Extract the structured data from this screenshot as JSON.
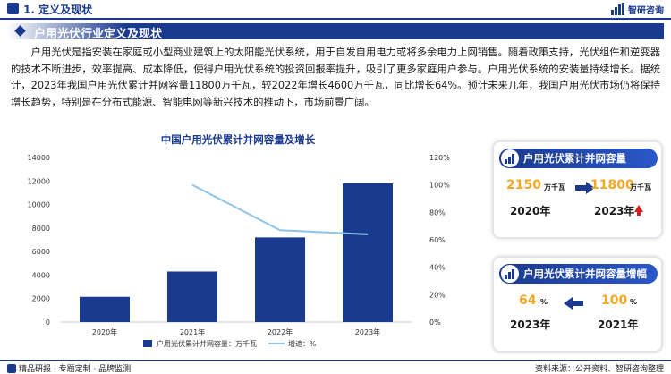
{
  "header": {
    "section_title": "1. 定义及现状",
    "brand": "智研咨询"
  },
  "section": {
    "title": "户用光伏行业定义及现状"
  },
  "paragraph": "户用光伏是指安装在家庭或小型商业建筑上的太阳能光伏系统，用于自发自用电力或将多余电力上网销售。随着政策支持，光伏组件和逆变器的技术不断进步，效率提高、成本降低，使得户用光伏系统的投资回报率提升，吸引了更多家庭用户参与。户用光伏系统的安装量持续增长。据统计，2023年我国户用光伏累计并网容量11800万千瓦，较2022年增长4600万千瓦，同比增长64%。预计未来几年，我国户用光伏市场仍将保持增长趋势，特别是在分布式能源、智能电网等新兴技术的推动下，市场前景广阔。",
  "chart_data": {
    "type": "bar",
    "title": "中国户用光伏累计并网容量及增长",
    "categories": [
      "2020年",
      "2021年",
      "2022年",
      "2023年"
    ],
    "series": [
      {
        "name": "户用光伏累计并网容量：万千瓦",
        "type": "bar",
        "axis": "left",
        "color": "#1a3a8f",
        "values": [
          2150,
          4300,
          7200,
          11800
        ]
      },
      {
        "name": "增速：%",
        "type": "line",
        "axis": "right",
        "color": "#8ec3ea",
        "values": [
          null,
          100,
          67,
          64
        ]
      }
    ],
    "y_left": {
      "min": 0,
      "max": 14000,
      "ticks": [
        "0",
        "2000",
        "4000",
        "6000",
        "8000",
        "10000",
        "12000",
        "14000"
      ]
    },
    "y_right": {
      "min": 0,
      "max": 120,
      "ticks": [
        "0%",
        "20%",
        "40%",
        "60%",
        "80%",
        "100%",
        "120%"
      ]
    },
    "legend_position": "bottom",
    "grid": false
  },
  "card1": {
    "title": "户用光伏累计并网容量",
    "left_value": "2150",
    "left_unit": "万千瓦",
    "left_year": "2020年",
    "right_value": "11800",
    "right_unit": "万千瓦",
    "right_year": "2023年"
  },
  "card2": {
    "title": "户用光伏累计并网容量增幅",
    "left_value": "64",
    "left_unit": "%",
    "left_year": "2023年",
    "right_value": "100",
    "right_unit": "%",
    "right_year": "2021年"
  },
  "footer": {
    "left": "精品研报 · 专题定制 · 品牌监测",
    "right": "资料来源：公开资料、智研咨询整理"
  },
  "colors": {
    "brand_blue": "#1a3a8f",
    "line_blue": "#8ec3ea",
    "accent_orange": "#f5a623",
    "arrow_red": "#d62020"
  }
}
